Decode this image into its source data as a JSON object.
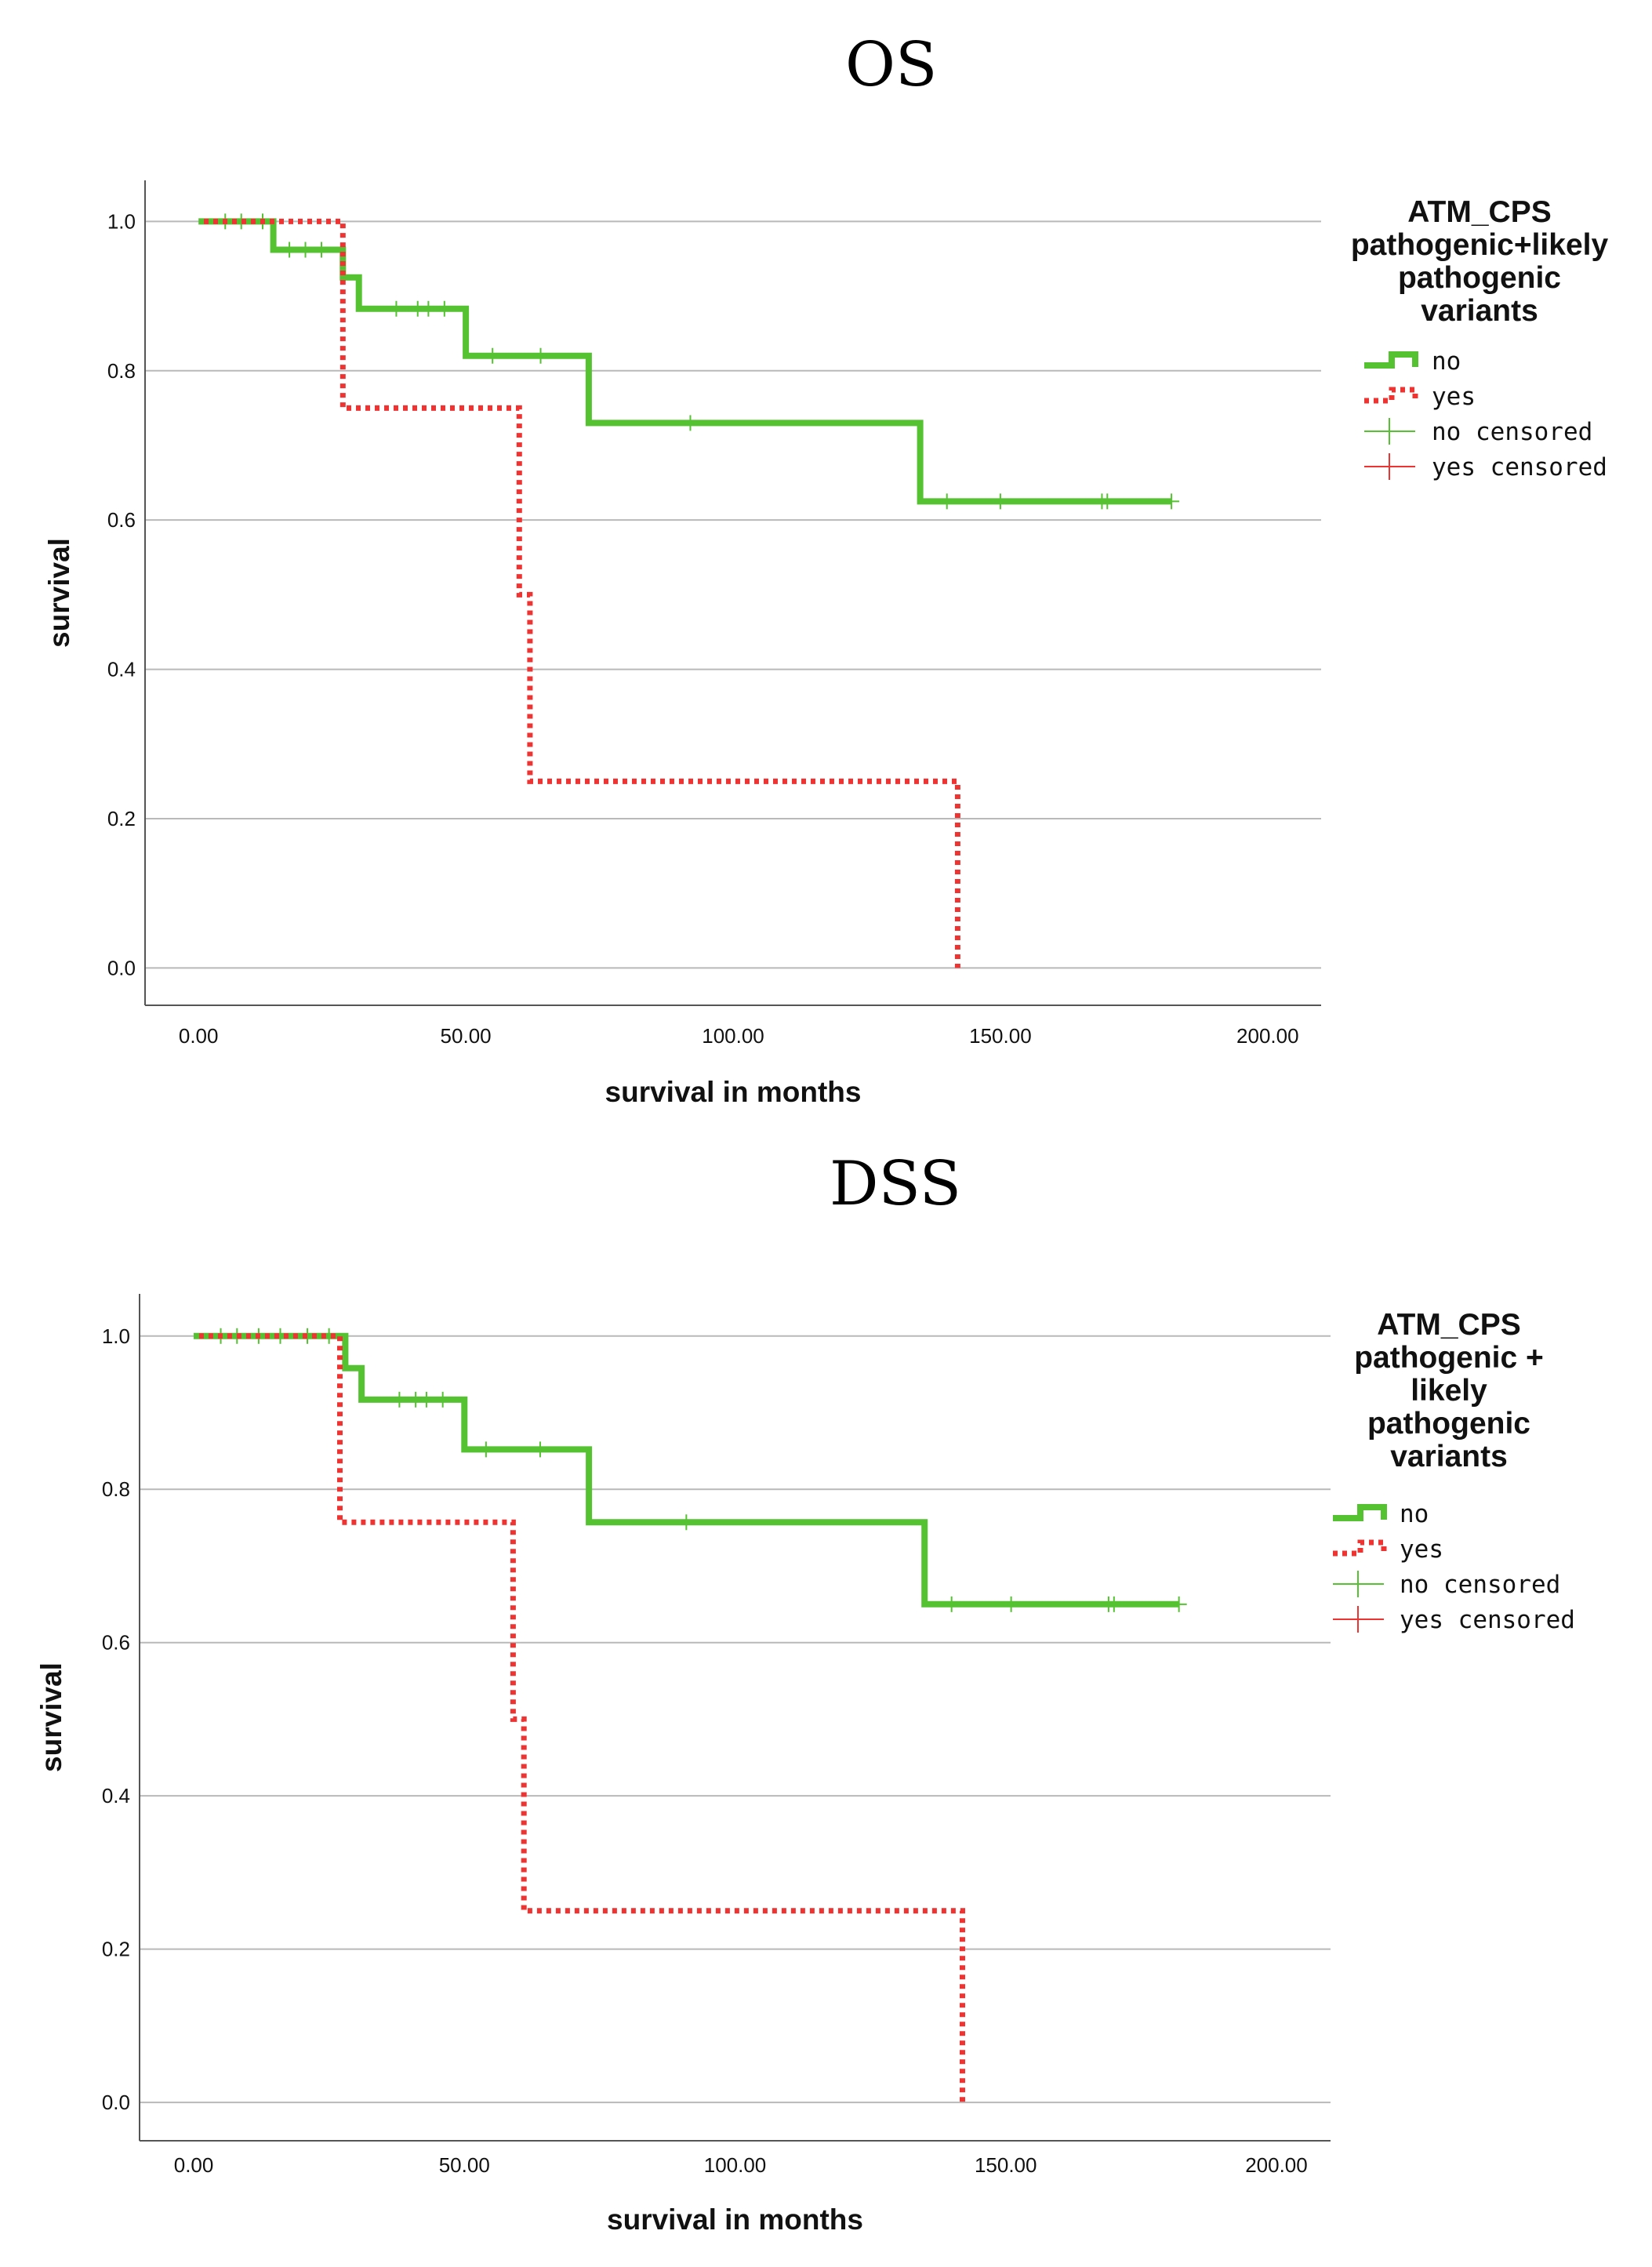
{
  "colors": {
    "no": "#55c232",
    "yes": "#ee3333",
    "grid": "#b9b9b9",
    "axis": "#555555"
  },
  "chart_data": [
    {
      "type": "line",
      "title": "OS",
      "xlabel": "survival in months",
      "ylabel": "survival",
      "xlim": [
        -10,
        210
      ],
      "ylim": [
        -0.05,
        1.055
      ],
      "x_ticks": [
        "0.00",
        "50.00",
        "100.00",
        "150.00",
        "200.00"
      ],
      "y_ticks": [
        "0.0",
        "0.2",
        "0.4",
        "0.6",
        "0.8",
        "1.0"
      ],
      "grid": "horizontal",
      "legend": {
        "position": "right",
        "title_lines": [
          "ATM_CPS",
          "pathogenic+likely",
          "pathogenic",
          "variants"
        ],
        "items": [
          "no",
          "yes",
          "no censored",
          "yes censored"
        ]
      },
      "series": [
        {
          "name": "no",
          "style": "solid",
          "x": [
            0,
            14,
            14,
            27,
            27,
            30,
            30,
            50,
            50,
            73,
            73,
            135,
            135,
            182
          ],
          "y": [
            1.0,
            1.0,
            0.962,
            0.962,
            0.925,
            0.925,
            0.883,
            0.883,
            0.82,
            0.82,
            0.73,
            0.73,
            0.625,
            0.625
          ],
          "censored_x": [
            5,
            8,
            12,
            17,
            20,
            23,
            37,
            41,
            43,
            46,
            55,
            64,
            92,
            140,
            150,
            169,
            170,
            182
          ],
          "censored_y": [
            1.0,
            1.0,
            1.0,
            0.962,
            0.962,
            0.962,
            0.883,
            0.883,
            0.883,
            0.883,
            0.82,
            0.82,
            0.73,
            0.625,
            0.625,
            0.625,
            0.625,
            0.625
          ]
        },
        {
          "name": "yes",
          "style": "dotted",
          "x": [
            1,
            27,
            27,
            60,
            60,
            62,
            62,
            142,
            142
          ],
          "y": [
            1.0,
            1.0,
            0.75,
            0.75,
            0.5,
            0.5,
            0.25,
            0.25,
            0.0
          ],
          "censored_x": [],
          "censored_y": []
        }
      ]
    },
    {
      "type": "line",
      "title": "DSS",
      "xlabel": "survival in months",
      "ylabel": "survival",
      "xlim": [
        -10,
        210
      ],
      "ylim": [
        -0.05,
        1.055
      ],
      "x_ticks": [
        "0.00",
        "50.00",
        "100.00",
        "150.00",
        "200.00"
      ],
      "y_ticks": [
        "0.0",
        "0.2",
        "0.4",
        "0.6",
        "0.8",
        "1.0"
      ],
      "grid": "horizontal",
      "legend": {
        "position": "right",
        "title_lines": [
          "ATM_CPS",
          "pathogenic +",
          "likely",
          "pathogenic",
          "variants"
        ],
        "items": [
          "no",
          "yes",
          "no censored",
          "yes censored"
        ]
      },
      "series": [
        {
          "name": "no",
          "style": "solid",
          "x": [
            0,
            28,
            28,
            31,
            31,
            50,
            50,
            73,
            73,
            135,
            135,
            182
          ],
          "y": [
            1.0,
            1.0,
            0.958,
            0.958,
            0.917,
            0.917,
            0.852,
            0.852,
            0.757,
            0.757,
            0.65,
            0.65
          ],
          "censored_x": [
            5,
            8,
            12,
            16,
            21,
            25,
            38,
            41,
            43,
            46,
            54,
            64,
            91,
            140,
            151,
            169,
            170,
            182
          ],
          "censored_y": [
            1.0,
            1.0,
            1.0,
            1.0,
            1.0,
            1.0,
            0.917,
            0.917,
            0.917,
            0.917,
            0.852,
            0.852,
            0.757,
            0.65,
            0.65,
            0.65,
            0.65,
            0.65
          ]
        },
        {
          "name": "yes",
          "style": "dotted",
          "x": [
            1,
            27,
            27,
            59,
            59,
            61,
            61,
            142,
            142
          ],
          "y": [
            1.0,
            1.0,
            0.757,
            0.757,
            0.5,
            0.5,
            0.25,
            0.25,
            0.0
          ],
          "censored_x": [],
          "censored_y": []
        }
      ]
    }
  ]
}
